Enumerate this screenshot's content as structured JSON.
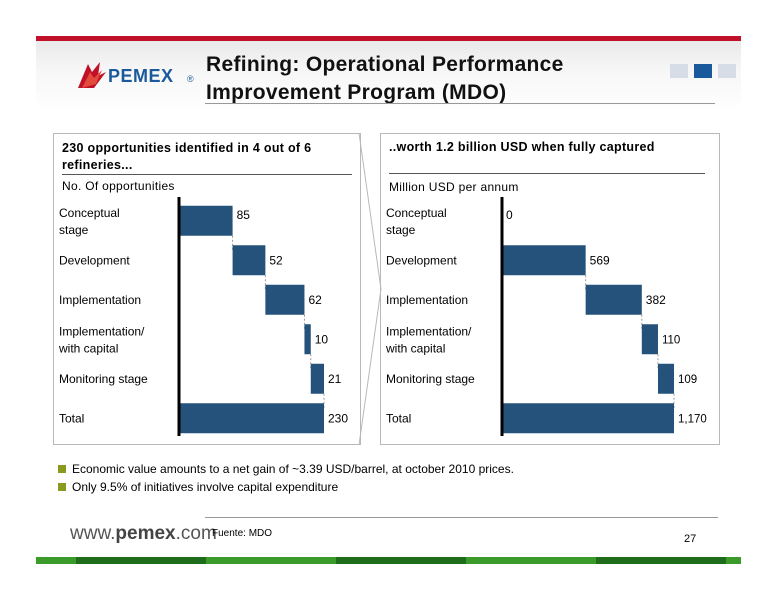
{
  "header": {
    "logo_text": "PEMEX",
    "logo_reg": "®",
    "title_line1": "Refining: Operational Performance",
    "title_line2": "Improvement Program (MDO)"
  },
  "left_panel": {
    "heading": "230 opportunities identified in 4 out of 6 refineries...",
    "unit": "No. Of opportunities"
  },
  "right_panel": {
    "heading": "..worth 1.2 billion USD when fully captured",
    "unit": "Million USD per annum"
  },
  "chart_data": [
    {
      "type": "bar",
      "categories": [
        "Conceptual stage",
        "Development",
        "Implementation",
        "Implementation/ with capital",
        "Monitoring stage",
        "Total"
      ],
      "values": [
        85,
        52,
        62,
        10,
        21,
        230
      ],
      "labels": [
        "85",
        "52",
        "62",
        "10",
        "21",
        "230"
      ],
      "title": "",
      "xlabel": "",
      "ylabel": "No. Of opportunities",
      "xlim": [
        0,
        230
      ],
      "total_index": 5,
      "color": "#24527a"
    },
    {
      "type": "bar",
      "categories": [
        "Conceptual stage",
        "Development",
        "Implementation",
        "Implementation/ with capital",
        "Monitoring stage",
        "Total"
      ],
      "values": [
        0,
        569,
        382,
        110,
        109,
        1170
      ],
      "labels": [
        "0",
        "569",
        "382",
        "110",
        "109",
        "1,170"
      ],
      "title": "",
      "xlabel": "",
      "ylabel": "Million USD per annum",
      "xlim": [
        0,
        1170
      ],
      "total_index": 5,
      "color": "#24527a"
    }
  ],
  "bullets": [
    "Economic value amounts to a net gain of ~3.39 USD/barrel, at october 2010 prices.",
    "Only 9.5% of initiatives involve capital expenditure"
  ],
  "footer": {
    "site_prefix": "www.",
    "site_bold": "pemex",
    "site_suffix": ".com",
    "source": "Fuente: MDO",
    "page_number": "27"
  },
  "colors": {
    "brand_red": "#c0102a",
    "brand_blue": "#1a5a9c",
    "bar": "#24527a",
    "bullet": "#8a9a1e",
    "footer_green": "#3a9a2a"
  }
}
